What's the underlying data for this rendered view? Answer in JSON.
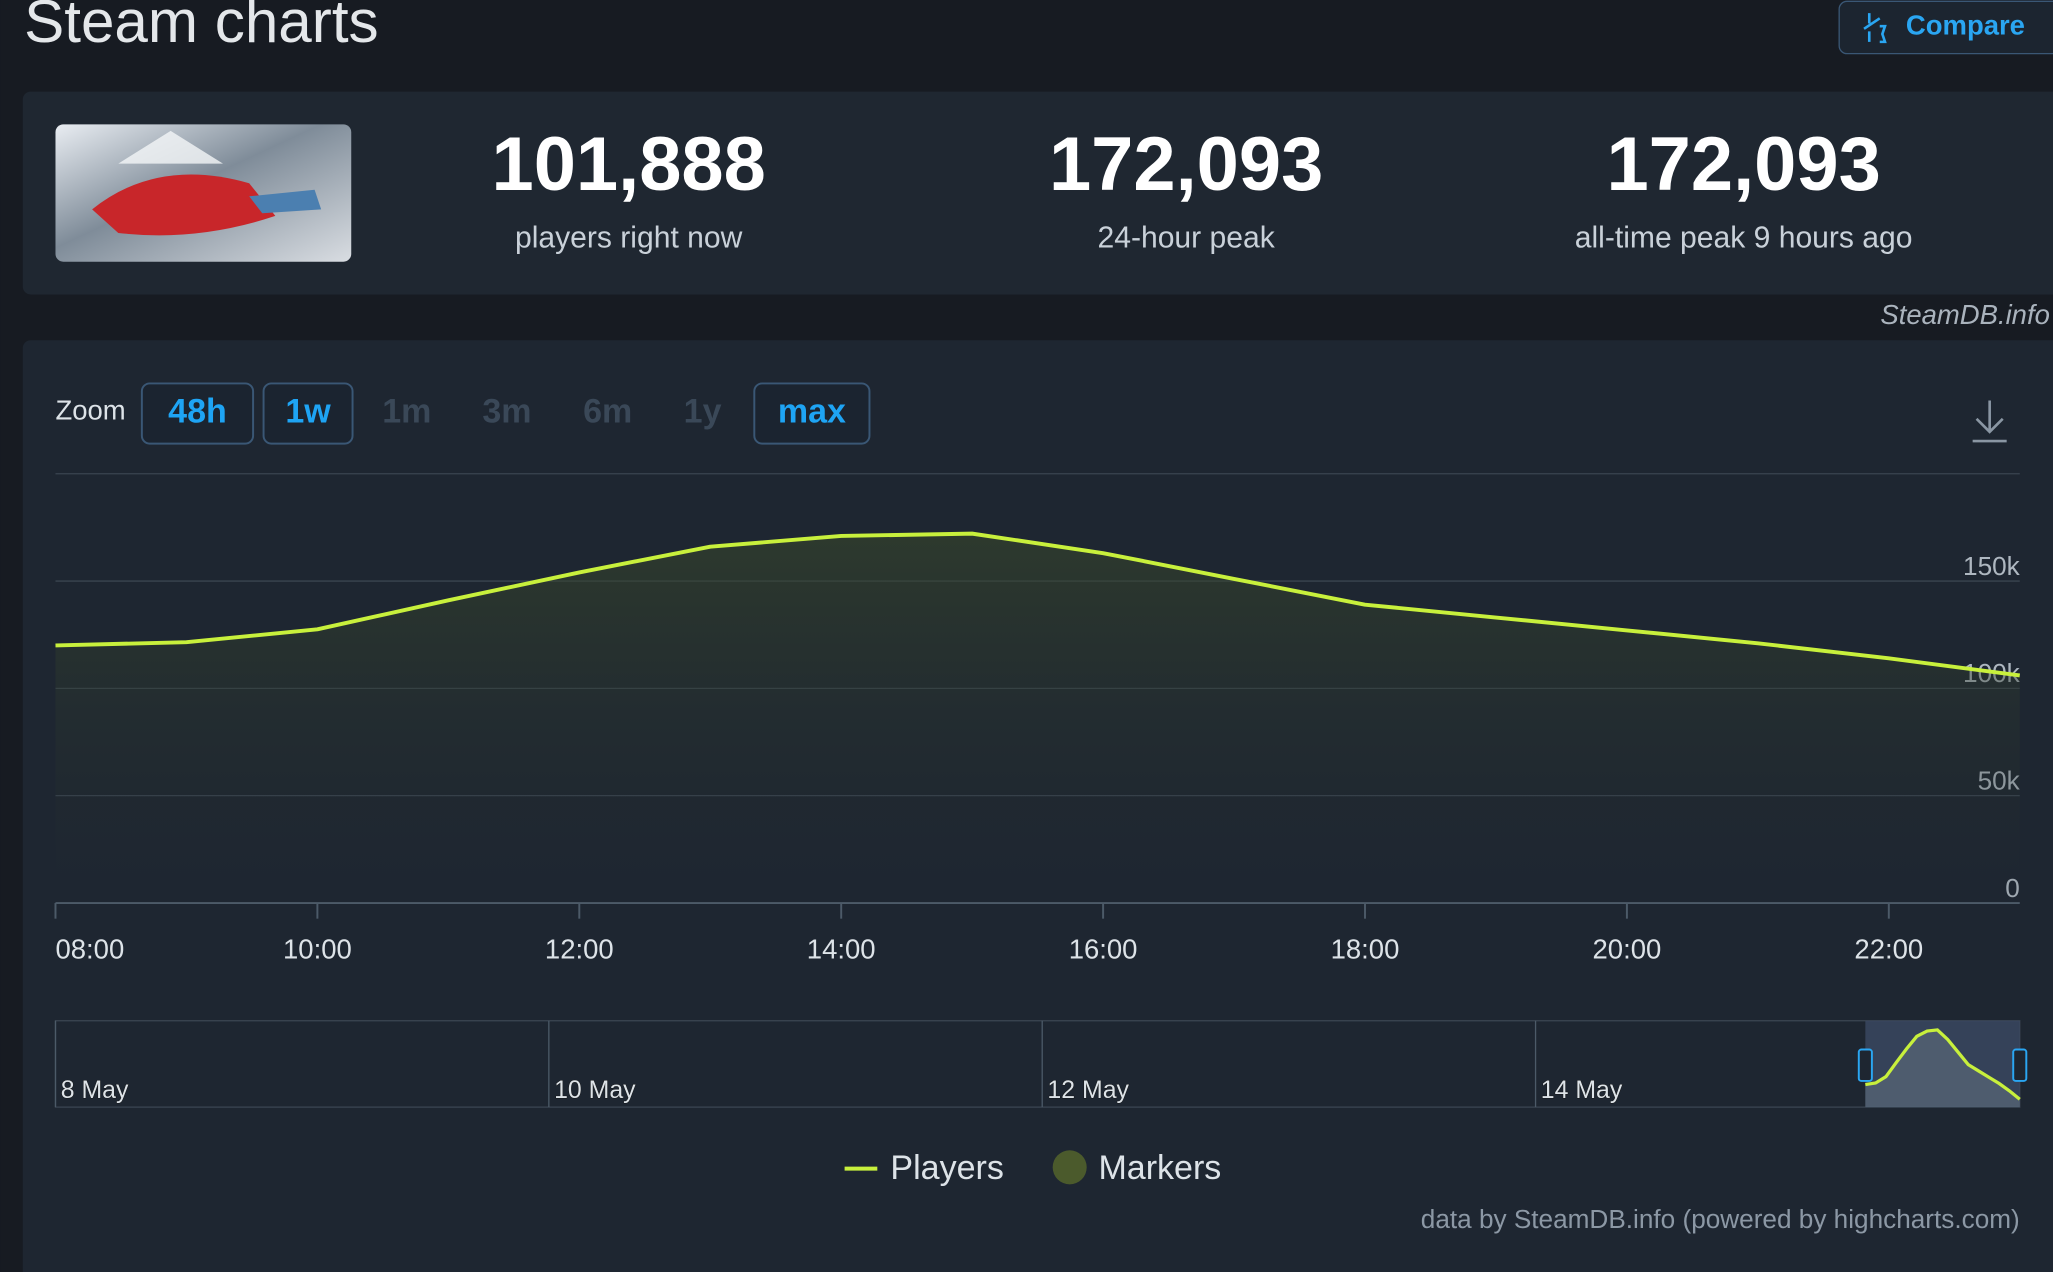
{
  "header": {
    "title": "Steam charts",
    "compare_button": "Compare"
  },
  "stats": [
    {
      "value": "101,888",
      "label": "players right now"
    },
    {
      "value": "172,093",
      "label": "24-hour peak"
    },
    {
      "value": "172,093",
      "label": "all-time peak 9 hours ago"
    }
  ],
  "watermark": "SteamDB.info",
  "zoom": {
    "label": "Zoom",
    "buttons": [
      {
        "label": "48h",
        "enabled": true
      },
      {
        "label": "1w",
        "enabled": true
      },
      {
        "label": "1m",
        "enabled": false
      },
      {
        "label": "3m",
        "enabled": false
      },
      {
        "label": "6m",
        "enabled": false
      },
      {
        "label": "1y",
        "enabled": false
      },
      {
        "label": "max",
        "enabled": true
      }
    ]
  },
  "chart_data": {
    "type": "line",
    "x": [
      8,
      9,
      10,
      11,
      12,
      13,
      14,
      15,
      16,
      17,
      18,
      19,
      20,
      21,
      22,
      23
    ],
    "series": [
      {
        "name": "Players",
        "color": "#c8f03c",
        "values": [
          120000,
          121500,
          127500,
          141000,
          154000,
          166000,
          171000,
          172093,
          163000,
          151000,
          139000,
          133000,
          127000,
          121000,
          114000,
          106000
        ]
      }
    ],
    "marker_series": {
      "name": "Markers",
      "color": "#4b5a2c"
    },
    "xlim": [
      8,
      23
    ],
    "xticks": [
      {
        "value": 8,
        "label": "08:00"
      },
      {
        "value": 10,
        "label": "10:00"
      },
      {
        "value": 12,
        "label": "12:00"
      },
      {
        "value": 14,
        "label": "14:00"
      },
      {
        "value": 16,
        "label": "16:00"
      },
      {
        "value": 18,
        "label": "18:00"
      },
      {
        "value": 20,
        "label": "20:00"
      },
      {
        "value": 22,
        "label": "22:00"
      }
    ],
    "ylim": [
      0,
      200000
    ],
    "yticks": [
      0,
      {
        "value": 50000,
        "label": "50k"
      },
      {
        "value": 100000,
        "label": "100k"
      },
      {
        "value": 150000,
        "label": "150k"
      }
    ],
    "grid": true
  },
  "navigator": {
    "labels": [
      "8 May",
      "10 May",
      "12 May",
      "14 May"
    ]
  },
  "credits": "data by SteamDB.info (powered by highcharts.com)"
}
